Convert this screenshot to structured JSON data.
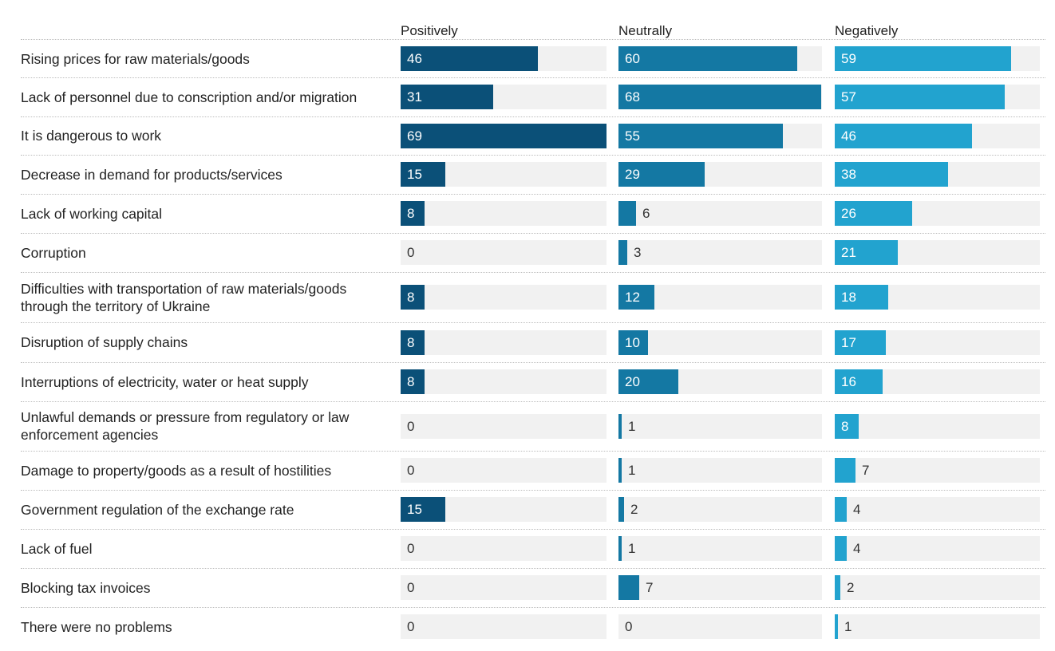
{
  "chart_data": {
    "type": "bar",
    "series": [
      {
        "name": "Positively",
        "color": "#0b5078",
        "values": [
          46,
          31,
          69,
          15,
          8,
          0,
          8,
          8,
          8,
          0,
          0,
          15,
          0,
          0,
          0
        ]
      },
      {
        "name": "Neutrally",
        "color": "#1478a3",
        "values": [
          60,
          68,
          55,
          29,
          6,
          3,
          12,
          10,
          20,
          1,
          1,
          2,
          1,
          7,
          0
        ]
      },
      {
        "name": "Negatively",
        "color": "#22a3cf",
        "values": [
          59,
          57,
          46,
          38,
          26,
          21,
          18,
          17,
          16,
          8,
          7,
          4,
          4,
          2,
          1
        ]
      }
    ],
    "categories": [
      "Rising prices for raw materials/goods",
      "Lack of personnel due to conscription and/or migration",
      "It is dangerous to work",
      "Decrease in demand for products/services",
      "Lack of working capital",
      "Corruption",
      "Difficulties with transportation of raw materials/goods through the territory of Ukraine",
      "Disruption of supply chains",
      "Interruptions of electricity, water or heat supply",
      "Unlawful demands or pressure from regulatory or law enforcement agencies",
      "Damage to property/goods as a result of hostilities",
      "Government regulation of the exchange rate",
      "Lack of fuel",
      "Blocking tax invoices",
      "There were no problems"
    ],
    "xlim": [
      0,
      69
    ],
    "track_color": "#f1f1f1"
  }
}
